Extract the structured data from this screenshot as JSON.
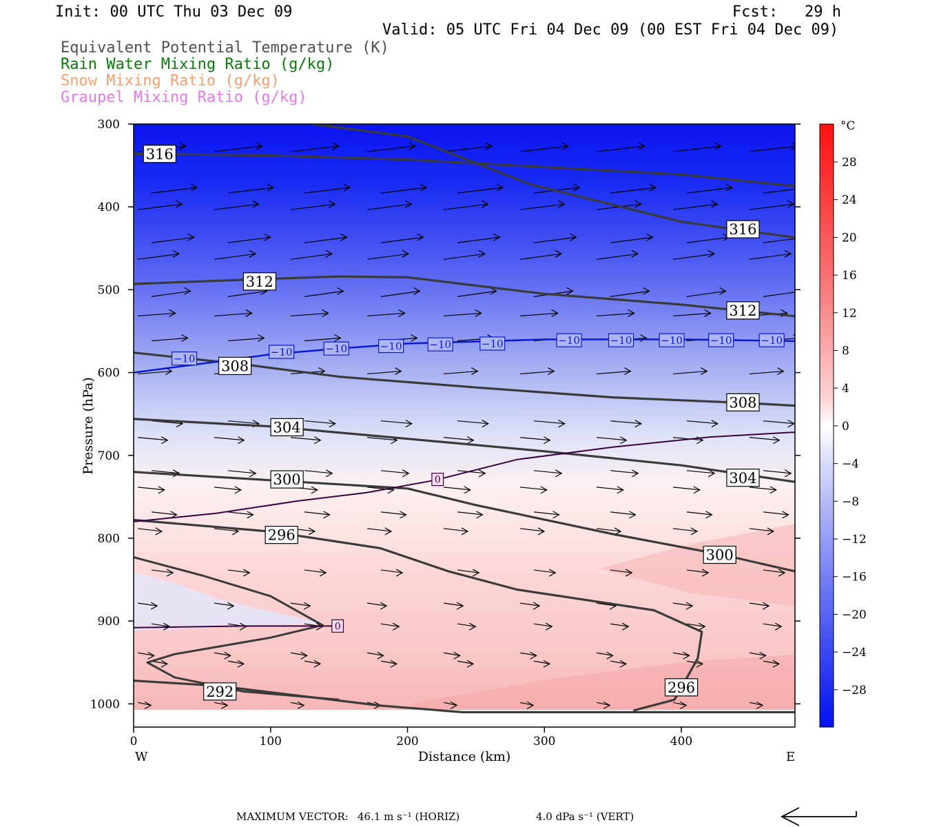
{
  "header": {
    "init": "Init: 00 UTC Thu 03 Dec 09",
    "fcst_label": "Fcst:",
    "fcst_value": "29 h",
    "valid": "Valid: 05 UTC Fri 04 Dec 09 (00 EST Fri 04 Dec 09)"
  },
  "legend": {
    "theta_e": {
      "label": "Equivalent Potential Temperature (K)",
      "color": "#505050"
    },
    "rain": {
      "label": "Rain Water Mixing Ratio (g/kg)",
      "color": "#0a7a0a"
    },
    "snow": {
      "label": "Snow Mixing Ratio (g/kg)",
      "color": "#f5a070"
    },
    "graupel": {
      "label": "Graupel Mixing Ratio (g/kg)",
      "color": "#e878e8"
    }
  },
  "footer": {
    "max_vector_label": "MAXIMUM VECTOR:",
    "horiz": "46.1 m s⁻¹ (HORIZ)",
    "vert": "4.0 dPa s⁻¹ (VERT)"
  },
  "colorbar": {
    "unit": "°C",
    "tick_labels": [
      "28",
      "24",
      "20",
      "16",
      "12",
      "8",
      "4",
      "0",
      "−4",
      "−8",
      "−12",
      "−16",
      "−20",
      "−24",
      "−28"
    ]
  },
  "chart_data": {
    "type": "heatmap",
    "description_fields": "temperature shading with theta-e contours and wind vectors",
    "xlabel": "Distance (km)",
    "ylabel": "Pressure (hPa)",
    "xlim": [
      0,
      483
    ],
    "ylim": [
      1028,
      300
    ],
    "x_ticks": [
      0,
      100,
      200,
      300,
      400
    ],
    "y_ticks": [
      300,
      400,
      500,
      600,
      700,
      800,
      900,
      1000
    ],
    "x_end_labels": {
      "left": "W",
      "right": "E"
    },
    "theta_e_contours": [
      {
        "level": "316",
        "points": [
          [
            0,
            336
          ],
          [
            100,
            338
          ],
          [
            200,
            343
          ],
          [
            300,
            352
          ],
          [
            400,
            361
          ],
          [
            483,
            375
          ]
        ]
      },
      {
        "level": "316",
        "points": [
          [
            130,
            300
          ],
          [
            200,
            315
          ],
          [
            290,
            373
          ],
          [
            400,
            418
          ],
          [
            483,
            437
          ]
        ]
      },
      {
        "level": "312",
        "points": [
          [
            0,
            493
          ],
          [
            80,
            488
          ],
          [
            150,
            484
          ],
          [
            200,
            485
          ],
          [
            300,
            505
          ],
          [
            400,
            518
          ],
          [
            483,
            532
          ]
        ]
      },
      {
        "level": "308",
        "points": [
          [
            0,
            576
          ],
          [
            80,
            590
          ],
          [
            150,
            605
          ],
          [
            250,
            618
          ],
          [
            350,
            630
          ],
          [
            450,
            637
          ],
          [
            483,
            640
          ]
        ]
      },
      {
        "level": "304",
        "points": [
          [
            0,
            656
          ],
          [
            100,
            665
          ],
          [
            200,
            680
          ],
          [
            300,
            695
          ],
          [
            400,
            712
          ],
          [
            483,
            732
          ]
        ]
      },
      {
        "level": "300",
        "points": [
          [
            0,
            720
          ],
          [
            100,
            730
          ],
          [
            200,
            740
          ],
          [
            250,
            760
          ],
          [
            350,
            795
          ],
          [
            430,
            820
          ],
          [
            483,
            840
          ]
        ]
      },
      {
        "level": "296",
        "points": [
          [
            0,
            778
          ],
          [
            100,
            792
          ],
          [
            180,
            812
          ],
          [
            230,
            840
          ],
          [
            280,
            862
          ],
          [
            380,
            887
          ],
          [
            415,
            913
          ],
          [
            412,
            945
          ],
          [
            395,
            995
          ],
          [
            365,
            1008
          ]
        ]
      },
      {
        "level": "292",
        "points": [
          [
            0,
            972
          ],
          [
            60,
            978
          ],
          [
            120,
            990
          ],
          [
            180,
            1002
          ],
          [
            240,
            1010
          ],
          [
            483,
            1010
          ]
        ]
      }
    ],
    "theta_e_inner_loop": [
      [
        0,
        823
      ],
      [
        50,
        845
      ],
      [
        100,
        870
      ],
      [
        138,
        905
      ],
      [
        100,
        920
      ],
      [
        30,
        940
      ],
      [
        10,
        950
      ],
      [
        30,
        968
      ],
      [
        80,
        985
      ],
      [
        150,
        995
      ]
    ],
    "isotherm_minus10": {
      "level": "−10",
      "points": [
        [
          0,
          600
        ],
        [
          60,
          587
        ],
        [
          100,
          578
        ],
        [
          150,
          571
        ],
        [
          200,
          565
        ],
        [
          300,
          560
        ],
        [
          400,
          560
        ],
        [
          483,
          562
        ]
      ]
    },
    "isotherm_zero": {
      "level": "0",
      "points": [
        [
          0,
          780
        ],
        [
          60,
          770
        ],
        [
          120,
          755
        ],
        [
          170,
          745
        ],
        [
          220,
          730
        ],
        [
          280,
          705
        ],
        [
          350,
          690
        ],
        [
          420,
          678
        ],
        [
          483,
          672
        ]
      ]
    },
    "isotherm_zero_low": {
      "level": "0",
      "points": [
        [
          0,
          908
        ],
        [
          80,
          906
        ],
        [
          150,
          906
        ]
      ]
    },
    "temperature_shading_note": "cold blue aloft (about −28 °C at 300 hPa) warming to about +8 °C near 1000 hPa"
  }
}
